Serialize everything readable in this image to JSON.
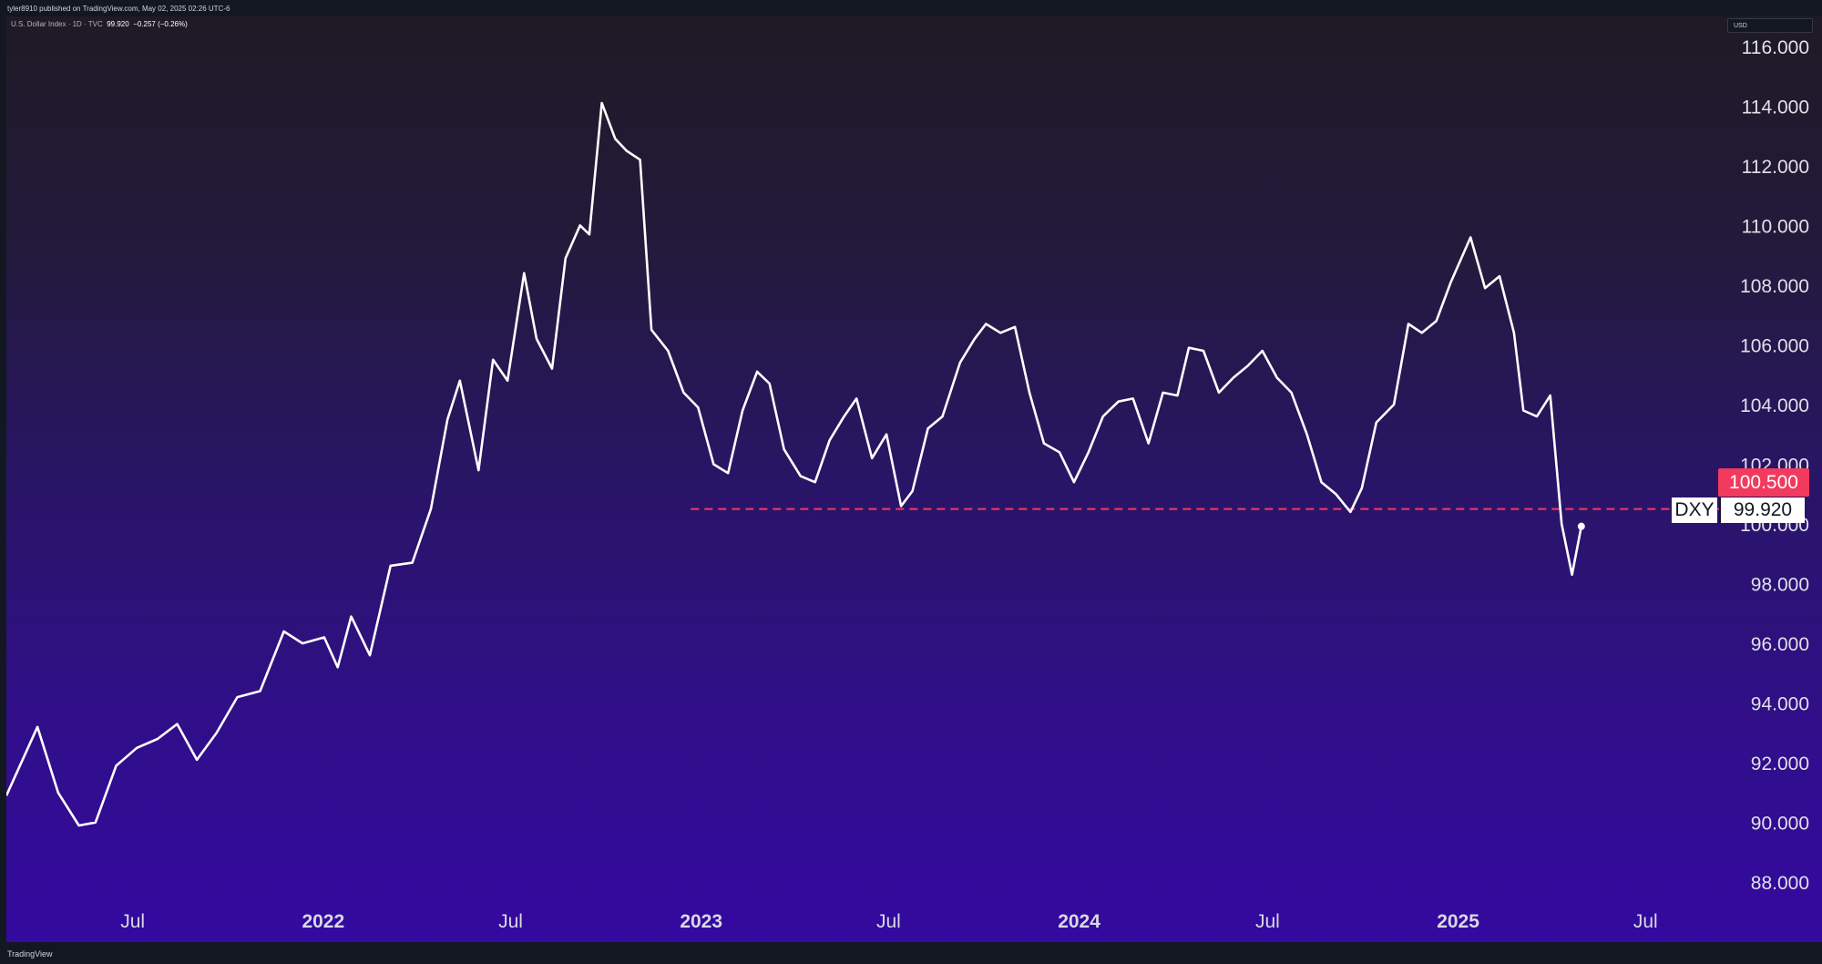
{
  "header": {
    "publisher": "tyler8910 published on TradingView.com, May 02, 2025 02:26 UTC-6"
  },
  "legend": {
    "symbol_desc": "U.S. Dollar Index · 1D · TVC",
    "last": "99.920",
    "change": "−0.257 (−0.26%)"
  },
  "currency": "USD",
  "price_label": {
    "symbol": "DXY",
    "value": "99.920"
  },
  "level_label": "100.500",
  "footer": "TradingView",
  "colors": {
    "line": "#ffffff",
    "level": "#f23a5f",
    "bg_top": "#1f1a25",
    "bg_bottom": "#3409a0"
  },
  "chart_data": {
    "type": "line",
    "title": "",
    "xlabel": "",
    "ylabel": "",
    "ylim": [
      87,
      117
    ],
    "xlim": [
      "2021-03-01",
      "2025-09-10"
    ],
    "y_ticks": [
      "88.000",
      "90.000",
      "92.000",
      "94.000",
      "96.000",
      "98.000",
      "100.000",
      "102.000",
      "104.000",
      "106.000",
      "108.000",
      "110.000",
      "112.000",
      "114.000",
      "116.000"
    ],
    "x_ticks": [
      {
        "date": "2021-07-01",
        "label": "Jul",
        "major": false
      },
      {
        "date": "2022-01-01",
        "label": "2022",
        "major": true
      },
      {
        "date": "2022-07-01",
        "label": "Jul",
        "major": false
      },
      {
        "date": "2023-01-01",
        "label": "2023",
        "major": true
      },
      {
        "date": "2023-07-01",
        "label": "Jul",
        "major": false
      },
      {
        "date": "2024-01-01",
        "label": "2024",
        "major": true
      },
      {
        "date": "2024-07-01",
        "label": "Jul",
        "major": false
      },
      {
        "date": "2025-01-01",
        "label": "2025",
        "major": true
      },
      {
        "date": "2025-07-01",
        "label": "Jul",
        "major": false
      }
    ],
    "level_line": {
      "value": 100.5,
      "from": "2022-12-22",
      "style": "dashed"
    },
    "series": [
      {
        "x": [
          "2021-03-01",
          "2021-03-31",
          "2021-04-20",
          "2021-05-10",
          "2021-05-26",
          "2021-06-15",
          "2021-07-05",
          "2021-07-25",
          "2021-08-13",
          "2021-09-01",
          "2021-09-20",
          "2021-10-10",
          "2021-11-01",
          "2021-11-24",
          "2021-12-12",
          "2022-01-02",
          "2022-01-15",
          "2022-01-28",
          "2022-02-15",
          "2022-03-07",
          "2022-03-28",
          "2022-04-15",
          "2022-05-01",
          "2022-05-13",
          "2022-05-31",
          "2022-06-14",
          "2022-06-28",
          "2022-07-14",
          "2022-07-26",
          "2022-08-10",
          "2022-08-23",
          "2022-09-06",
          "2022-09-15",
          "2022-09-27",
          "2022-10-10",
          "2022-10-21",
          "2022-11-03",
          "2022-11-14",
          "2022-11-30",
          "2022-12-15",
          "2022-12-29",
          "2023-01-13",
          "2023-01-27",
          "2023-02-10",
          "2023-02-24",
          "2023-03-08",
          "2023-03-22",
          "2023-04-07",
          "2023-04-21",
          "2023-05-05",
          "2023-05-19",
          "2023-05-31",
          "2023-06-15",
          "2023-06-29",
          "2023-07-13",
          "2023-07-24",
          "2023-08-08",
          "2023-08-22",
          "2023-09-08",
          "2023-09-22",
          "2023-10-03",
          "2023-10-17",
          "2023-10-31",
          "2023-11-14",
          "2023-11-28",
          "2023-12-13",
          "2023-12-27",
          "2024-01-10",
          "2024-01-24",
          "2024-02-08",
          "2024-02-22",
          "2024-03-08",
          "2024-03-22",
          "2024-04-05",
          "2024-04-16",
          "2024-04-30",
          "2024-05-15",
          "2024-05-29",
          "2024-06-12",
          "2024-06-26",
          "2024-07-10",
          "2024-07-24",
          "2024-08-08",
          "2024-08-22",
          "2024-09-05",
          "2024-09-19",
          "2024-09-30",
          "2024-10-14",
          "2024-10-31",
          "2024-11-14",
          "2024-11-27",
          "2024-12-11",
          "2024-12-25",
          "2025-01-13",
          "2025-01-27",
          "2025-02-10",
          "2025-02-24",
          "2025-03-05",
          "2025-03-18",
          "2025-03-31",
          "2025-04-11",
          "2025-04-21",
          "2025-04-30"
        ],
        "values": [
          90.9,
          93.2,
          91.0,
          89.9,
          90.0,
          91.9,
          92.5,
          92.8,
          93.3,
          92.1,
          93.0,
          94.2,
          94.4,
          96.4,
          96.0,
          96.2,
          95.2,
          96.9,
          95.6,
          98.6,
          98.7,
          100.5,
          103.5,
          104.8,
          101.8,
          105.5,
          104.8,
          108.4,
          106.2,
          105.2,
          108.9,
          110.0,
          109.7,
          114.1,
          112.9,
          112.5,
          112.2,
          106.5,
          105.8,
          104.4,
          103.9,
          102.0,
          101.7,
          103.8,
          105.1,
          104.7,
          102.5,
          101.6,
          101.4,
          102.8,
          103.6,
          104.2,
          102.2,
          103.0,
          100.6,
          101.1,
          103.2,
          103.6,
          105.4,
          106.2,
          106.7,
          106.4,
          106.6,
          104.4,
          102.7,
          102.4,
          101.4,
          102.4,
          103.6,
          104.1,
          104.2,
          102.7,
          104.4,
          104.3,
          105.9,
          105.8,
          104.4,
          104.9,
          105.3,
          105.8,
          104.9,
          104.4,
          103.0,
          101.4,
          101.0,
          100.4,
          101.2,
          103.4,
          104.0,
          106.7,
          106.4,
          106.8,
          108.1,
          109.6,
          107.9,
          108.3,
          106.4,
          103.8,
          103.6,
          104.3,
          100.0,
          98.3,
          99.92
        ]
      }
    ]
  }
}
